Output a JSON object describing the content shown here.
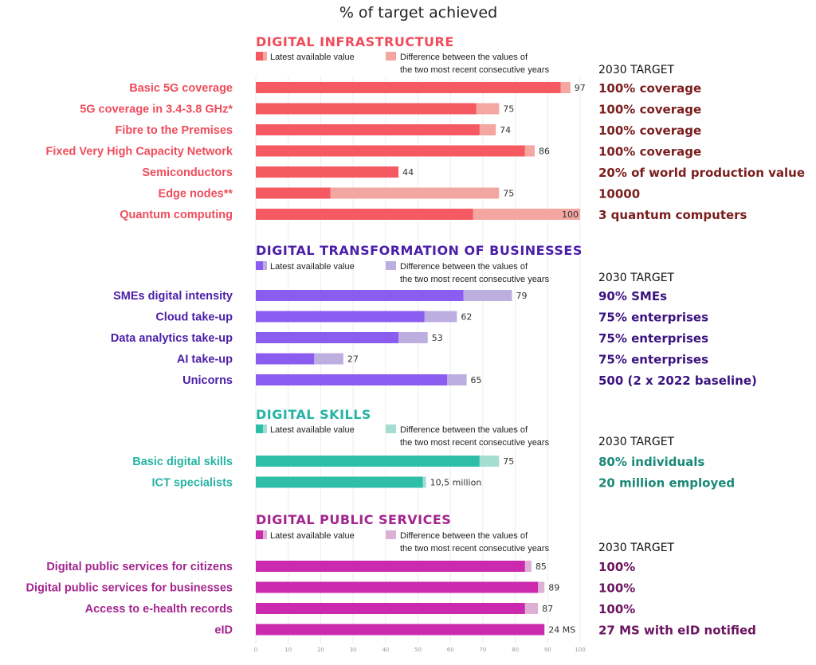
{
  "title": "% of target achieved",
  "target_header": "2030 TARGET",
  "legend": {
    "latest": "Latest available value",
    "diff_line1": "Difference between the values of",
    "diff_line2": "the two most recent consecutive years"
  },
  "x_ticks": [
    "0",
    "10",
    "20",
    "30",
    "40",
    "50",
    "60",
    "70",
    "80",
    "90",
    "100"
  ],
  "colors": {
    "infrastructure": {
      "title": "#ef4c5b",
      "main": "#f55a63",
      "light": "#f4a6a1",
      "target": "#7b1d1d"
    },
    "business": {
      "title": "#4b1ea8",
      "main": "#8b5cf0",
      "light": "#bdaee0",
      "target": "#3b1380"
    },
    "skills": {
      "title": "#26b4a4",
      "main": "#2fbfa8",
      "light": "#a6ddd2",
      "target": "#1a8878"
    },
    "public": {
      "title": "#a3258f",
      "main": "#cc2aae",
      "light": "#ddb0d4",
      "target": "#6b1460"
    }
  },
  "chart_data": {
    "type": "bar",
    "orientation": "horizontal",
    "title": "% of target achieved",
    "xlim": [
      0,
      100
    ],
    "x_ticks": [
      0,
      10,
      20,
      30,
      40,
      50,
      60,
      70,
      80,
      90,
      100
    ],
    "groups": [
      {
        "key": "infrastructure",
        "title": "DIGITAL INFRASTRUCTURE",
        "items": [
          {
            "label": "Basic 5G coverage",
            "latest": 94,
            "total": 97,
            "value_label": "97",
            "target": "100% coverage"
          },
          {
            "label": "5G coverage in 3.4-3.8 GHz*",
            "latest": 68,
            "total": 75,
            "value_label": "75",
            "target": "100% coverage"
          },
          {
            "label": "Fibre to the Premises",
            "latest": 69,
            "total": 74,
            "value_label": "74",
            "target": "100% coverage"
          },
          {
            "label": "Fixed Very High Capacity Network",
            "latest": 83,
            "total": 86,
            "value_label": "86",
            "target": "100% coverage"
          },
          {
            "label": "Semiconductors",
            "latest": 44,
            "total": 44,
            "value_label": "44",
            "target": "20% of world production value"
          },
          {
            "label": "Edge nodes**",
            "latest": 23,
            "total": 75,
            "value_label": "75",
            "target": "10000"
          },
          {
            "label": "Quantum computing",
            "latest": 67,
            "total": 100,
            "value_label": "100",
            "target": "3 quantum computers"
          }
        ]
      },
      {
        "key": "business",
        "title": "DIGITAL TRANSFORMATION OF BUSINESSES",
        "items": [
          {
            "label": "SMEs digital intensity",
            "latest": 64,
            "total": 79,
            "value_label": "79",
            "target": "90% SMEs"
          },
          {
            "label": "Cloud take-up",
            "latest": 52,
            "total": 62,
            "value_label": "62",
            "target": "75% enterprises"
          },
          {
            "label": "Data analytics take-up",
            "latest": 44,
            "total": 53,
            "value_label": "53",
            "target": "75% enterprises"
          },
          {
            "label": "AI take-up",
            "latest": 18,
            "total": 27,
            "value_label": "27",
            "target": "75% enterprises"
          },
          {
            "label": "Unicorns",
            "latest": 59,
            "total": 65,
            "value_label": "65",
            "target": "500 (2 x 2022 baseline)"
          }
        ]
      },
      {
        "key": "skills",
        "title": "DIGITAL SKILLS",
        "items": [
          {
            "label": "Basic digital skills",
            "latest": 69,
            "total": 75,
            "value_label": "75",
            "target": "80% individuals"
          },
          {
            "label": "ICT specialists",
            "latest": 51.5,
            "total": 52.5,
            "value_label": "10,5 million",
            "target": "20 million employed"
          }
        ]
      },
      {
        "key": "public",
        "title": "DIGITAL PUBLIC SERVICES",
        "items": [
          {
            "label": "Digital public services for citizens",
            "latest": 83,
            "total": 85,
            "value_label": "85",
            "target": "100%"
          },
          {
            "label": "Digital public services for businesses",
            "latest": 87,
            "total": 89,
            "value_label": "89",
            "target": "100%"
          },
          {
            "label": "Access to e-health records",
            "latest": 83,
            "total": 87,
            "value_label": "87",
            "target": "100%"
          },
          {
            "label": "eID",
            "latest": 89,
            "total": 89,
            "value_label": "24 MS",
            "target": "27 MS with eID notified"
          }
        ]
      }
    ]
  }
}
